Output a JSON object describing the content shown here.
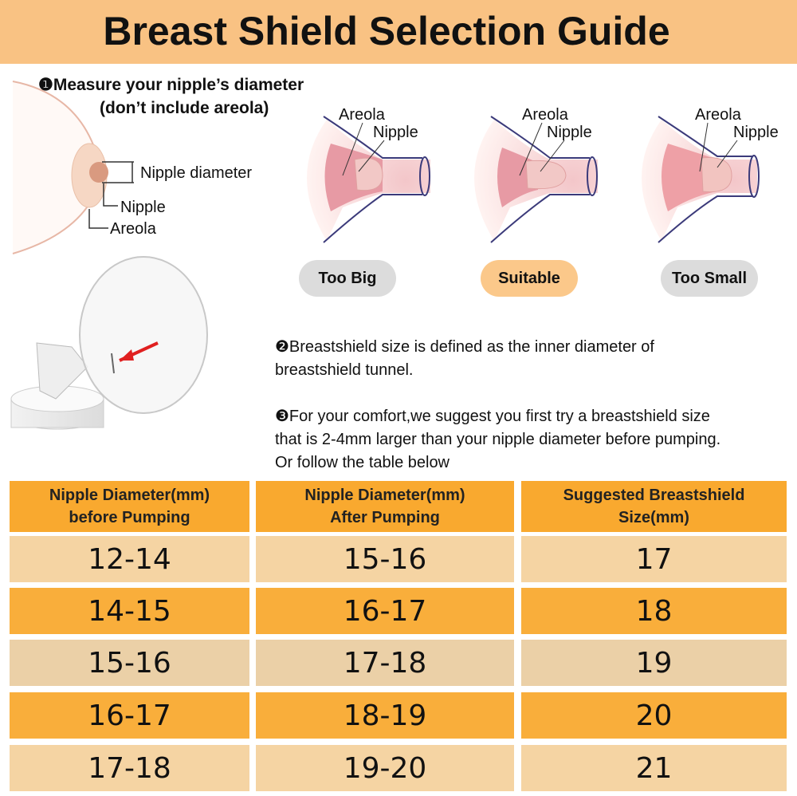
{
  "header": {
    "title": "Breast Shield Selection Guide"
  },
  "step1": {
    "lines": [
      "❶Measure your nipple’s diameter",
      "(don’t include areola)"
    ],
    "labels": {
      "diameter": "Nipple diameter",
      "nipple": "Nipple",
      "areola": "Areola"
    }
  },
  "fits": [
    {
      "areola": "Areola",
      "nipple": "Nipple",
      "badge": "Too Big"
    },
    {
      "areola": "Areola",
      "nipple": "Nipple",
      "badge": "Suitable"
    },
    {
      "areola": "Areola",
      "nipple": "Nipple",
      "badge": "Too Small"
    }
  ],
  "step2": {
    "lines": [
      "❷Breastshield size is defined as the inner diameter of",
      "breastshield tunnel."
    ]
  },
  "step3": {
    "lines": [
      "❸For your comfort,we suggest you first try a breastshield size",
      "that is 2-4mm larger than your nipple diameter before pumping.",
      "Or follow the table below"
    ]
  },
  "table": {
    "headers": [
      [
        "Nipple Diameter(mm)",
        "before Pumping"
      ],
      [
        "Nipple Diameter(mm)",
        "After Pumping"
      ],
      [
        "Suggested Breastshield",
        "Size(mm)"
      ]
    ],
    "rows": [
      [
        "12-14",
        "15-16",
        "17"
      ],
      [
        "14-15",
        "16-17",
        "18"
      ],
      [
        "15-16",
        "17-18",
        "19"
      ],
      [
        "16-17",
        "18-19",
        "20"
      ],
      [
        "17-18",
        "19-20",
        "21"
      ]
    ]
  }
}
